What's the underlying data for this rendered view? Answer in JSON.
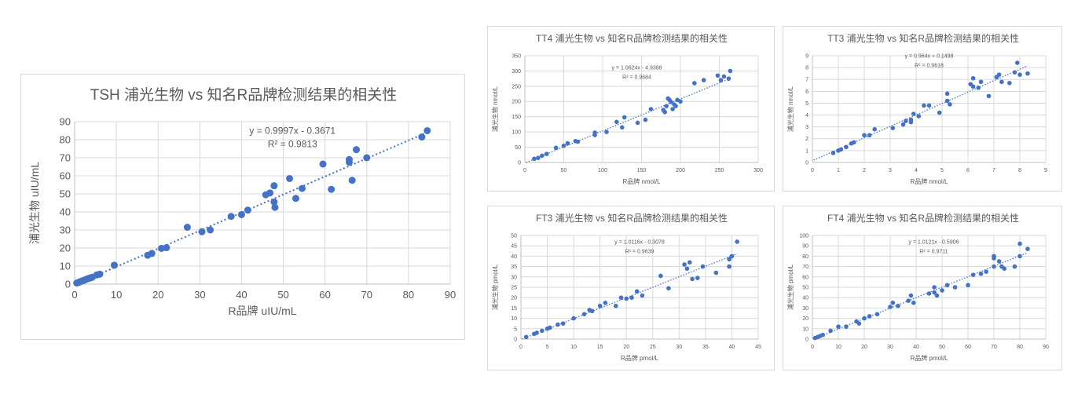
{
  "chart_data": [
    {
      "id": "tsh",
      "type": "scatter",
      "title": "TSH 浦光生物 vs 知名R品牌检测结果的相关性",
      "xlabel": "R品牌 uIU/mL",
      "ylabel": "浦光生物 uIU/mL",
      "xlim": [
        0,
        90
      ],
      "ylim": [
        0,
        90
      ],
      "xticks": [
        "0",
        "10",
        "20",
        "30",
        "40",
        "50",
        "60",
        "70",
        "80",
        "90"
      ],
      "yticks": [
        "0",
        "10",
        "20",
        "30",
        "40",
        "50",
        "60",
        "70",
        "80",
        "90"
      ],
      "equation": "y = 0.9997x - 0.3671",
      "r2": "R² = 0.9813",
      "trendline": {
        "slope": 0.9997,
        "intercept": -0.3671
      },
      "color": "#4472c4",
      "points": [
        [
          0.5,
          0.6
        ],
        [
          0.9,
          0.9
        ],
        [
          1.2,
          1.2
        ],
        [
          1.5,
          1.5
        ],
        [
          1.9,
          1.9
        ],
        [
          2.3,
          2.2
        ],
        [
          2.6,
          2.5
        ],
        [
          3.0,
          2.9
        ],
        [
          3.4,
          3.2
        ],
        [
          3.8,
          3.5
        ],
        [
          4.2,
          3.8
        ],
        [
          5.3,
          5.1
        ],
        [
          6.0,
          5.5
        ],
        [
          9.5,
          10.5
        ],
        [
          17.5,
          16
        ],
        [
          18.5,
          17
        ],
        [
          20.8,
          19.8
        ],
        [
          22,
          20.2
        ],
        [
          27,
          31.5
        ],
        [
          30.5,
          29
        ],
        [
          32.5,
          30
        ],
        [
          37.5,
          37.5
        ],
        [
          40,
          38.5
        ],
        [
          41.5,
          41
        ],
        [
          45.8,
          49.5
        ],
        [
          46.8,
          50.5
        ],
        [
          47.8,
          54.5
        ],
        [
          47.8,
          45.5
        ],
        [
          48,
          42.5
        ],
        [
          51.5,
          58.5
        ],
        [
          53,
          47.5
        ],
        [
          54.5,
          53
        ],
        [
          59.5,
          66.5
        ],
        [
          61.5,
          52.5
        ],
        [
          65.8,
          67.5
        ],
        [
          65.8,
          69
        ],
        [
          66.5,
          57.5
        ],
        [
          67.5,
          74.5
        ],
        [
          70,
          70
        ],
        [
          83.2,
          81.5
        ],
        [
          84.5,
          85
        ]
      ]
    },
    {
      "id": "tt4",
      "type": "scatter",
      "title": "TT4 浦光生物 vs 知名R品牌检测结果的相关性",
      "xlabel": "R品牌 nmol/L",
      "ylabel": "浦光生物 nmol/L",
      "xlim": [
        0,
        300
      ],
      "ylim": [
        0,
        350
      ],
      "xticks": [
        "0",
        "50",
        "100",
        "150",
        "200",
        "250",
        "300"
      ],
      "yticks": [
        "0",
        "50",
        "100",
        "150",
        "200",
        "250",
        "300",
        "350"
      ],
      "equation": "y = 1.0624x - 4.9388",
      "r2": "R² = 0.9684",
      "trendline": {
        "slope": 1.0624,
        "intercept": -4.9388
      },
      "color": "#4472c4",
      "points": [
        [
          12,
          12
        ],
        [
          17,
          15
        ],
        [
          22,
          22
        ],
        [
          28,
          28
        ],
        [
          40,
          48
        ],
        [
          50,
          55
        ],
        [
          55,
          63
        ],
        [
          65,
          70
        ],
        [
          68,
          68
        ],
        [
          90,
          90
        ],
        [
          90,
          98
        ],
        [
          105,
          100
        ],
        [
          118,
          133
        ],
        [
          125,
          115
        ],
        [
          128,
          148
        ],
        [
          145,
          130
        ],
        [
          155,
          140
        ],
        [
          162,
          175
        ],
        [
          178,
          172
        ],
        [
          180,
          165
        ],
        [
          182,
          185
        ],
        [
          184,
          210
        ],
        [
          186,
          205
        ],
        [
          188,
          198
        ],
        [
          190,
          175
        ],
        [
          192,
          190
        ],
        [
          194,
          185
        ],
        [
          196,
          205
        ],
        [
          200,
          200
        ],
        [
          218,
          260
        ],
        [
          230,
          270
        ],
        [
          248,
          285
        ],
        [
          252,
          270
        ],
        [
          256,
          282
        ],
        [
          262,
          275
        ],
        [
          264,
          300
        ]
      ]
    },
    {
      "id": "tt3",
      "type": "scatter",
      "title": "TT3 浦光生物 vs 知名R品牌检测结果的相关性",
      "xlabel": "R品牌 nmol/L",
      "ylabel": "浦光生物 nmol/L",
      "xlim": [
        0,
        9
      ],
      "ylim": [
        0,
        9
      ],
      "xticks": [
        "0",
        "1",
        "2",
        "3",
        "4",
        "5",
        "6",
        "7",
        "8",
        "9"
      ],
      "yticks": [
        "0",
        "1",
        "2",
        "3",
        "4",
        "5",
        "6",
        "7",
        "8",
        "9"
      ],
      "equation": "y = 0.964x + 0.1498",
      "r2": "R² = 0.9618",
      "trendline": {
        "slope": 0.964,
        "intercept": 0.1498
      },
      "color": "#4472c4",
      "points": [
        [
          0.8,
          0.8
        ],
        [
          1.0,
          1.0
        ],
        [
          1.1,
          1.1
        ],
        [
          1.3,
          1.3
        ],
        [
          1.5,
          1.6
        ],
        [
          1.6,
          1.7
        ],
        [
          2.0,
          2.3
        ],
        [
          2.2,
          2.3
        ],
        [
          2.4,
          2.8
        ],
        [
          3.1,
          2.9
        ],
        [
          3.5,
          3.2
        ],
        [
          3.6,
          3.5
        ],
        [
          3.8,
          3.6
        ],
        [
          3.8,
          3.4
        ],
        [
          3.9,
          4.1
        ],
        [
          4.1,
          3.9
        ],
        [
          4.3,
          4.8
        ],
        [
          4.5,
          4.8
        ],
        [
          4.9,
          4.2
        ],
        [
          5.2,
          5.2
        ],
        [
          5.2,
          5.8
        ],
        [
          5.3,
          4.9
        ],
        [
          6.1,
          6.6
        ],
        [
          6.2,
          7.1
        ],
        [
          6.2,
          6.4
        ],
        [
          6.4,
          6.3
        ],
        [
          6.5,
          6.8
        ],
        [
          6.8,
          5.6
        ],
        [
          7.1,
          7.2
        ],
        [
          7.2,
          7.4
        ],
        [
          7.3,
          6.8
        ],
        [
          7.6,
          6.7
        ],
        [
          7.8,
          7.6
        ],
        [
          7.9,
          8.4
        ],
        [
          8.0,
          7.4
        ],
        [
          8.3,
          7.5
        ]
      ]
    },
    {
      "id": "ft3",
      "type": "scatter",
      "title": "FT3 浦光生物 vs 知名R品牌检测结果的相关性",
      "xlabel": "R品牌 pmol/L",
      "ylabel": "浦光生物 pmol/L",
      "xlim": [
        0,
        45
      ],
      "ylim": [
        0,
        50
      ],
      "xticks": [
        "0",
        "5",
        "10",
        "15",
        "20",
        "25",
        "30",
        "35",
        "40",
        "45"
      ],
      "yticks": [
        "0",
        "5",
        "10",
        "15",
        "20",
        "25",
        "30",
        "35",
        "40",
        "45",
        "50"
      ],
      "equation": "y = 1.0116x - 0.3078",
      "r2": "R² = 0.9639",
      "trendline": {
        "slope": 1.0116,
        "intercept": -0.3078
      },
      "color": "#4472c4",
      "points": [
        [
          1,
          1
        ],
        [
          2.5,
          2.5
        ],
        [
          3,
          3
        ],
        [
          4,
          4
        ],
        [
          5,
          5
        ],
        [
          5.5,
          5.5
        ],
        [
          7,
          7
        ],
        [
          8,
          7.5
        ],
        [
          10,
          10
        ],
        [
          12,
          12
        ],
        [
          13,
          14
        ],
        [
          13.5,
          13.5
        ],
        [
          15,
          16
        ],
        [
          16,
          17.5
        ],
        [
          18,
          16
        ],
        [
          19,
          20
        ],
        [
          20,
          19.5
        ],
        [
          21,
          20
        ],
        [
          22,
          23
        ],
        [
          23,
          21
        ],
        [
          26.5,
          30.5
        ],
        [
          28,
          24.5
        ],
        [
          31,
          36
        ],
        [
          31.5,
          34
        ],
        [
          32,
          37
        ],
        [
          32.5,
          29
        ],
        [
          33.5,
          29.5
        ],
        [
          34.5,
          35
        ],
        [
          37,
          32
        ],
        [
          39.5,
          38.5
        ],
        [
          39.5,
          35
        ],
        [
          40,
          40
        ],
        [
          41,
          47
        ]
      ]
    },
    {
      "id": "ft4",
      "type": "scatter",
      "title": "FT4 浦光生物 vs 知名R品牌检测结果的相关性",
      "xlabel": "R品牌 pmol/L",
      "ylabel": "浦光生物 pmol/L",
      "xlim": [
        0,
        90
      ],
      "ylim": [
        0,
        100
      ],
      "xticks": [
        "0",
        "10",
        "20",
        "30",
        "40",
        "50",
        "60",
        "70",
        "80",
        "90"
      ],
      "yticks": [
        "0",
        "10",
        "20",
        "30",
        "40",
        "50",
        "60",
        "70",
        "80",
        "90",
        "100"
      ],
      "equation": "y = 1.0121x - 0.5906",
      "r2": "R² = 0.9711",
      "trendline": {
        "slope": 1.0121,
        "intercept": -0.5906
      },
      "color": "#4472c4",
      "points": [
        [
          1,
          1
        ],
        [
          2,
          2
        ],
        [
          3,
          3
        ],
        [
          4,
          4
        ],
        [
          7,
          8
        ],
        [
          10,
          12
        ],
        [
          13,
          12
        ],
        [
          17,
          17
        ],
        [
          18,
          15
        ],
        [
          20,
          20
        ],
        [
          22,
          22
        ],
        [
          25,
          24
        ],
        [
          30,
          31
        ],
        [
          31,
          35
        ],
        [
          33,
          32
        ],
        [
          37,
          37
        ],
        [
          38,
          42
        ],
        [
          39,
          35
        ],
        [
          45,
          44
        ],
        [
          47,
          45
        ],
        [
          47,
          50
        ],
        [
          48,
          42
        ],
        [
          50,
          47
        ],
        [
          52,
          52
        ],
        [
          55,
          50
        ],
        [
          60,
          52
        ],
        [
          62,
          62
        ],
        [
          65,
          63
        ],
        [
          67,
          65
        ],
        [
          70,
          70
        ],
        [
          70,
          78
        ],
        [
          70,
          80
        ],
        [
          72,
          75
        ],
        [
          73,
          70
        ],
        [
          74,
          68
        ],
        [
          78,
          70
        ],
        [
          80,
          80
        ],
        [
          80,
          92
        ],
        [
          83,
          87
        ]
      ]
    }
  ]
}
